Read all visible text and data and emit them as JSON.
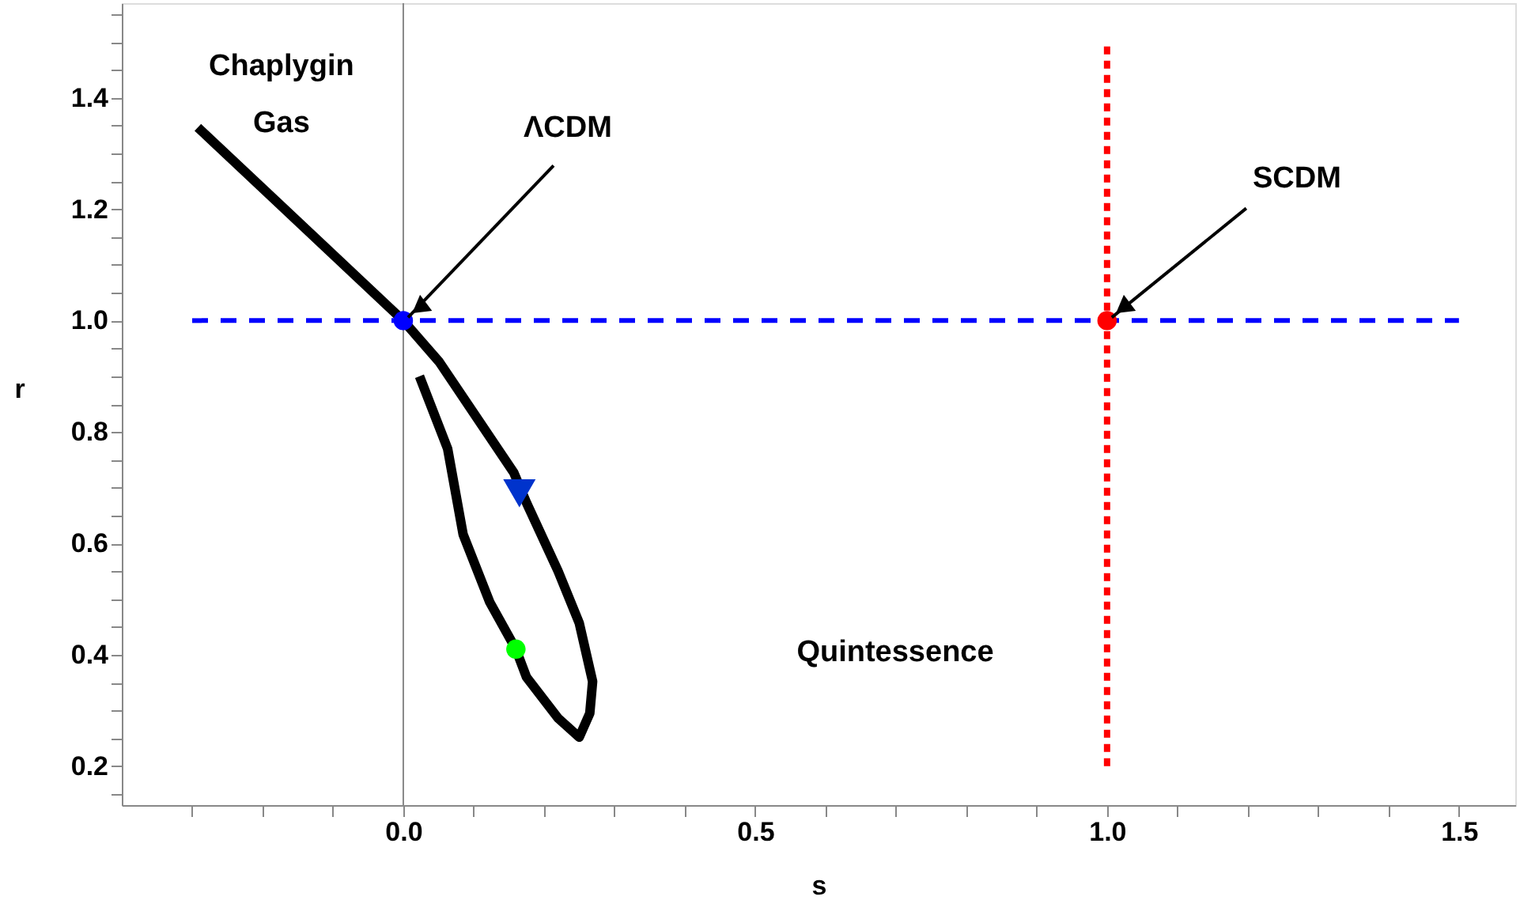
{
  "chart_data": {
    "type": "line",
    "xlabel": "s",
    "ylabel": "r",
    "xlim": [
      -0.4,
      1.58
    ],
    "ylim": [
      0.13,
      1.57
    ],
    "xticks": [
      {
        "value": -0.3,
        "label": null
      },
      {
        "value": -0.2,
        "label": null
      },
      {
        "value": -0.1,
        "label": null
      },
      {
        "value": 0,
        "label": "0.0"
      },
      {
        "value": 0.1,
        "label": null
      },
      {
        "value": 0.2,
        "label": null
      },
      {
        "value": 0.3,
        "label": null
      },
      {
        "value": 0.4,
        "label": null
      },
      0.5,
      {
        "value": 0.6,
        "label": null
      },
      {
        "value": 0.7,
        "label": null
      },
      {
        "value": 0.8,
        "label": null
      },
      {
        "value": 0.9,
        "label": null
      },
      {
        "value": 1,
        "label": "1.0"
      },
      {
        "value": 1.1,
        "label": null
      },
      {
        "value": 1.2,
        "label": null
      },
      {
        "value": 1.3,
        "label": null
      },
      {
        "value": 1.4,
        "label": null
      },
      1.5
    ],
    "yticks": [
      {
        "value": 0.15,
        "label": null
      },
      0.2,
      {
        "value": 0.25,
        "label": null
      },
      {
        "value": 0.3,
        "label": null
      },
      {
        "value": 0.35,
        "label": null
      },
      0.4,
      {
        "value": 0.45,
        "label": null
      },
      {
        "value": 0.5,
        "label": null
      },
      {
        "value": 0.55,
        "label": null
      },
      0.6,
      {
        "value": 0.65,
        "label": null
      },
      {
        "value": 0.7,
        "label": null
      },
      {
        "value": 0.75,
        "label": null
      },
      0.8,
      {
        "value": 0.85,
        "label": null
      },
      {
        "value": 0.9,
        "label": null
      },
      {
        "value": 0.95,
        "label": null
      },
      {
        "value": 1,
        "label": "1.0"
      },
      {
        "value": 1.05,
        "label": null
      },
      {
        "value": 1.1,
        "label": null
      },
      {
        "value": 1.15,
        "label": null
      },
      1.2,
      {
        "value": 1.25,
        "label": null
      },
      {
        "value": 1.3,
        "label": null
      },
      {
        "value": 1.35,
        "label": null
      },
      1.4,
      {
        "value": 1.45,
        "label": null
      },
      {
        "value": 1.5,
        "label": null
      },
      {
        "value": 1.55,
        "label": null
      }
    ],
    "grid": false,
    "ref_lines": [
      {
        "axis": "x",
        "value": 0,
        "color": "#888888"
      }
    ],
    "series": [
      {
        "type": "line",
        "color": "#000000",
        "line_style": "solid",
        "x": [
          -0.292,
          0,
          0.051,
          0.157,
          0.175,
          0.22,
          0.25,
          0.269,
          0.265,
          0.25,
          0.22,
          0.175,
          0.16,
          0.123,
          0.085,
          0.063,
          0.023
        ],
        "values": [
          1.347,
          1,
          0.926,
          0.727,
          0.673,
          0.55,
          0.457,
          0.352,
          0.295,
          0.252,
          0.286,
          0.36,
          0.41,
          0.494,
          0.616,
          0.77,
          0.9
        ]
      },
      {
        "type": "line",
        "color": "#0000ff",
        "line_style": "dashed",
        "x": [
          -0.3,
          1.5
        ],
        "values": [
          1,
          1
        ]
      },
      {
        "type": "line",
        "color": "#ff0000",
        "line_style": "dotted",
        "x": [
          1,
          1
        ],
        "values": [
          0.2,
          1.5
        ]
      },
      {
        "type": "scatter",
        "color": "#0000ff",
        "marker": "circle",
        "x": [
          0
        ],
        "values": [
          1
        ]
      },
      {
        "type": "scatter",
        "color": "#ff0000",
        "marker": "circle",
        "x": [
          1
        ],
        "values": [
          1
        ]
      },
      {
        "type": "scatter",
        "color": "#00ff00",
        "marker": "circle",
        "x": [
          0.16
        ],
        "values": [
          0.41
        ]
      },
      {
        "type": "scatter",
        "color": "#0033cc",
        "marker": "triangle",
        "x": [
          0.165
        ],
        "values": [
          0.69
        ]
      }
    ],
    "annotations": [
      {
        "text": "Chaplygin\nGas",
        "x": -0.29,
        "y": 1.35
      },
      {
        "text": "ΛCDM",
        "x": 0,
        "y": 1
      },
      {
        "text": "SCDM",
        "x": 1,
        "y": 1
      },
      "Quintessence"
    ]
  }
}
